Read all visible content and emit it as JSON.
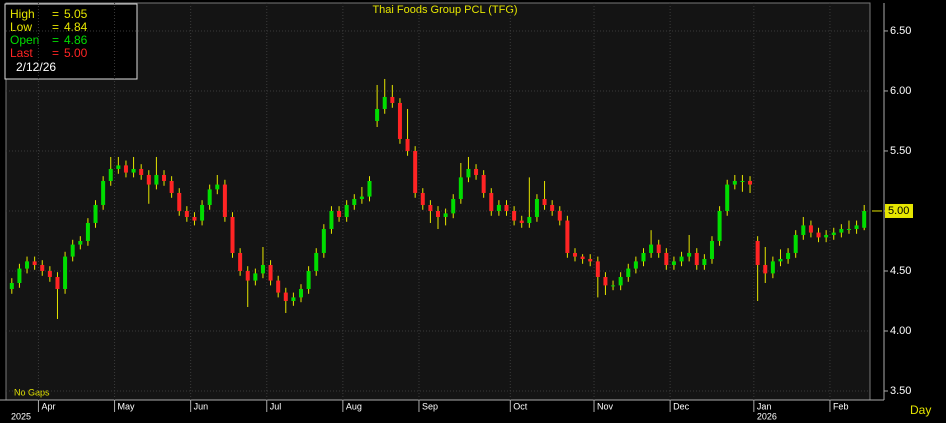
{
  "chart_data": {
    "type": "candlestick",
    "title": "Thai Foods Group PCL (TFG)",
    "note": "No Gaps",
    "x_unit": "Day",
    "up_color": "#00dd00",
    "down_color": "#ff2424",
    "wick_color": "#e6e600",
    "grid": true,
    "ylim": [
      3.425,
      6.733
    ],
    "yticks": [
      {
        "value": 3.5,
        "label": "3.50"
      },
      {
        "value": 4,
        "label": "4.00"
      },
      {
        "value": 4.5,
        "label": "4.50"
      },
      {
        "value": 5,
        "label": "5.00"
      },
      {
        "value": 5.5,
        "label": "5.50"
      },
      {
        "value": 6,
        "label": "6.00"
      },
      {
        "value": 6.5,
        "label": "6.50"
      }
    ],
    "last_marker": {
      "value": 5,
      "label": "5.00"
    },
    "info_box": {
      "separator": "=",
      "date": "2/12/26",
      "rows": [
        {
          "label": "High",
          "value": 5.05,
          "color": "#e6e600"
        },
        {
          "label": "Low",
          "value": 4.84,
          "color": "#e6e600"
        },
        {
          "label": "Open",
          "value": 4.86,
          "color": "#00dd00"
        },
        {
          "label": "Last",
          "value": {
            "value": 5,
            "label": "5.00"
          },
          "color": "#ff2424"
        }
      ]
    },
    "categories": [
      null,
      null,
      null,
      null,
      "Apr",
      null,
      null,
      null,
      null,
      null,
      null,
      null,
      null,
      null,
      "May",
      null,
      null,
      null,
      null,
      null,
      null,
      null,
      null,
      null,
      "Jun",
      null,
      null,
      null,
      null,
      null,
      null,
      null,
      null,
      null,
      "Jul",
      null,
      null,
      null,
      null,
      null,
      null,
      null,
      null,
      null,
      "Aug",
      null,
      null,
      null,
      null,
      null,
      null,
      null,
      null,
      null,
      "Sep",
      null,
      null,
      null,
      null,
      null,
      null,
      null,
      null,
      null,
      null,
      null,
      "Oct",
      null,
      null,
      null,
      null,
      null,
      null,
      null,
      null,
      null,
      null,
      "Nov",
      null,
      null,
      null,
      null,
      null,
      null,
      null,
      null,
      null,
      "Dec",
      null,
      null,
      null,
      null,
      null,
      null,
      null,
      null,
      null,
      null,
      "Jan",
      null,
      null,
      null,
      null,
      null,
      null,
      null,
      null,
      null,
      "Feb",
      null,
      null,
      null,
      null
    ],
    "years": [
      "2025",
      null,
      null,
      null,
      null,
      null,
      null,
      null,
      null,
      null,
      null,
      null,
      null,
      null,
      null,
      null,
      null,
      null,
      null,
      null,
      null,
      null,
      null,
      null,
      null,
      null,
      null,
      null,
      null,
      null,
      null,
      null,
      null,
      null,
      null,
      null,
      null,
      null,
      null,
      null,
      null,
      null,
      null,
      null,
      null,
      null,
      null,
      null,
      null,
      null,
      null,
      null,
      null,
      null,
      null,
      null,
      null,
      null,
      null,
      null,
      null,
      null,
      null,
      null,
      null,
      null,
      null,
      null,
      null,
      null,
      null,
      null,
      null,
      null,
      null,
      null,
      null,
      null,
      null,
      null,
      null,
      null,
      null,
      null,
      null,
      null,
      null,
      null,
      null,
      null,
      null,
      null,
      null,
      null,
      null,
      null,
      null,
      null,
      "2026",
      null,
      null,
      null,
      null,
      null,
      null,
      null,
      null,
      null,
      null,
      null,
      null,
      null,
      null
    ],
    "open": [
      4.35,
      4.4,
      4.52,
      4.58,
      4.55,
      4.5,
      4.45,
      4.35,
      4.62,
      4.72,
      4.75,
      4.9,
      5.05,
      5.25,
      5.35,
      5.38,
      5.32,
      5.35,
      5.3,
      5.22,
      5.3,
      5.25,
      5.15,
      5.0,
      4.95,
      4.92,
      5.05,
      5.18,
      5.22,
      4.95,
      4.65,
      4.5,
      4.42,
      4.48,
      4.55,
      4.42,
      4.32,
      4.25,
      4.28,
      4.35,
      4.5,
      4.65,
      4.85,
      5.0,
      4.95,
      5.05,
      5.1,
      5.12,
      5.75,
      5.85,
      5.95,
      5.9,
      5.6,
      5.5,
      5.15,
      5.05,
      5.0,
      4.95,
      4.98,
      5.1,
      5.28,
      5.35,
      5.3,
      5.15,
      5.0,
      5.05,
      5.0,
      4.92,
      4.9,
      4.95,
      5.1,
      5.05,
      5.0,
      4.92,
      4.65,
      4.62,
      4.6,
      4.58,
      4.45,
      4.38,
      4.38,
      4.45,
      4.52,
      4.58,
      4.65,
      4.72,
      4.65,
      4.55,
      4.58,
      4.62,
      4.65,
      4.55,
      4.6,
      4.75,
      5.0,
      5.22,
      5.25,
      5.25,
      4.75,
      4.55,
      4.48,
      4.58,
      4.6,
      4.65,
      4.8,
      4.88,
      4.82,
      4.78,
      4.8,
      4.82,
      4.85,
      4.85,
      4.86
    ],
    "high": [
      4.44,
      4.56,
      4.62,
      4.62,
      4.59,
      4.54,
      4.49,
      4.66,
      4.76,
      4.79,
      4.94,
      5.09,
      5.29,
      5.45,
      5.45,
      5.42,
      5.45,
      5.39,
      5.34,
      5.45,
      5.34,
      5.29,
      5.19,
      5.04,
      4.99,
      5.09,
      5.22,
      5.3,
      5.26,
      4.99,
      4.69,
      4.54,
      4.52,
      4.7,
      4.59,
      4.46,
      4.36,
      4.32,
      4.39,
      4.54,
      4.69,
      4.89,
      5.04,
      5.04,
      5.09,
      5.14,
      5.2,
      5.29,
      6.05,
      6.1,
      6.05,
      5.94,
      5.85,
      5.54,
      5.19,
      5.09,
      5.04,
      5.02,
      5.14,
      5.4,
      5.45,
      5.39,
      5.34,
      5.19,
      5.09,
      5.09,
      5.04,
      4.96,
      5.28,
      5.14,
      5.25,
      5.09,
      5.04,
      4.96,
      4.69,
      4.64,
      4.64,
      4.62,
      4.49,
      4.42,
      4.49,
      4.56,
      4.62,
      4.69,
      4.84,
      4.76,
      4.69,
      4.62,
      4.66,
      4.8,
      4.69,
      4.64,
      4.79,
      5.04,
      5.26,
      5.3,
      5.3,
      5.29,
      4.79,
      4.7,
      4.62,
      4.68,
      4.69,
      4.84,
      4.95,
      4.92,
      4.86,
      4.84,
      4.86,
      4.89,
      4.92,
      4.92,
      5.05
    ],
    "low": [
      4.31,
      4.36,
      4.48,
      4.51,
      4.46,
      4.41,
      4.1,
      4.31,
      4.58,
      4.68,
      4.71,
      4.86,
      5.01,
      5.21,
      5.31,
      5.28,
      5.28,
      5.26,
      5.06,
      5.18,
      5.21,
      5.11,
      4.96,
      4.91,
      4.88,
      4.88,
      5.01,
      5.14,
      4.91,
      4.61,
      4.46,
      4.2,
      4.38,
      4.44,
      4.38,
      4.28,
      4.15,
      4.21,
      4.24,
      4.31,
      4.46,
      4.61,
      4.81,
      4.91,
      4.91,
      5.01,
      5.06,
      5.08,
      5.7,
      5.81,
      5.86,
      5.56,
      5.46,
      5.11,
      5.01,
      4.9,
      4.85,
      4.88,
      4.94,
      5.06,
      5.24,
      5.26,
      5.11,
      4.96,
      4.96,
      4.96,
      4.88,
      4.86,
      4.86,
      4.91,
      5.01,
      4.96,
      4.88,
      4.61,
      4.58,
      4.56,
      4.54,
      4.28,
      4.3,
      4.34,
      4.34,
      4.41,
      4.48,
      4.54,
      4.61,
      4.61,
      4.51,
      4.51,
      4.54,
      4.58,
      4.51,
      4.51,
      4.56,
      4.71,
      4.96,
      5.18,
      5.16,
      5.15,
      4.25,
      4.4,
      4.44,
      4.54,
      4.56,
      4.61,
      4.76,
      4.78,
      4.74,
      4.74,
      4.76,
      4.78,
      4.81,
      4.81,
      4.84
    ],
    "close": [
      4.4,
      4.52,
      4.58,
      4.55,
      4.5,
      4.45,
      4.35,
      4.62,
      4.72,
      4.75,
      4.9,
      5.05,
      5.25,
      5.35,
      5.38,
      5.32,
      5.35,
      5.3,
      5.22,
      5.3,
      5.25,
      5.15,
      5.0,
      4.95,
      4.92,
      5.05,
      5.18,
      5.22,
      4.95,
      4.65,
      4.5,
      4.42,
      4.48,
      4.55,
      4.42,
      4.32,
      4.25,
      4.28,
      4.35,
      4.5,
      4.65,
      4.85,
      5.0,
      4.95,
      5.05,
      5.1,
      5.12,
      5.25,
      5.85,
      5.95,
      5.9,
      5.6,
      5.5,
      5.15,
      5.05,
      5.0,
      4.95,
      4.98,
      5.1,
      5.28,
      5.35,
      5.3,
      5.15,
      5.0,
      5.05,
      5.0,
      4.92,
      4.9,
      4.95,
      5.1,
      5.05,
      5.0,
      4.92,
      4.65,
      4.62,
      4.6,
      4.58,
      4.45,
      4.38,
      4.38,
      4.45,
      4.52,
      4.58,
      4.65,
      4.72,
      4.65,
      4.55,
      4.58,
      4.62,
      4.65,
      4.55,
      4.6,
      4.75,
      5.0,
      5.22,
      5.25,
      5.25,
      5.22,
      4.55,
      4.48,
      4.58,
      4.6,
      4.65,
      4.8,
      4.88,
      4.82,
      4.78,
      4.8,
      4.82,
      4.85,
      4.85,
      4.88,
      5.0
    ]
  }
}
